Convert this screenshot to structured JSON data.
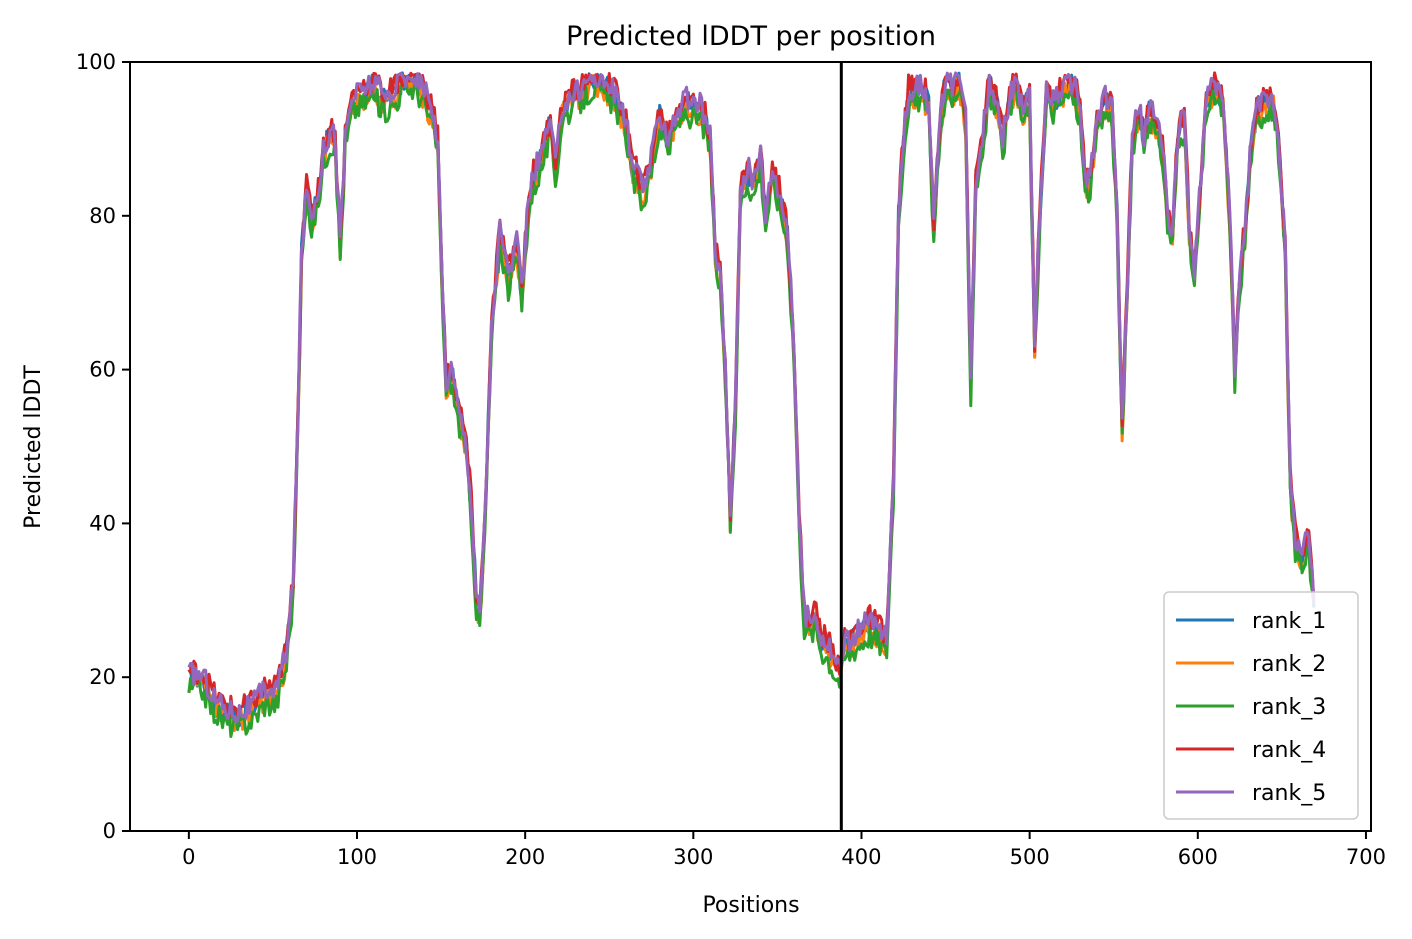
{
  "chart_data": {
    "type": "line",
    "title": "Predicted lDDT per position",
    "xlabel": "Positions",
    "ylabel": "Predicted lDDT",
    "xlim": [
      -35,
      703
    ],
    "ylim": [
      0,
      100
    ],
    "xticks": [
      0,
      100,
      200,
      300,
      400,
      500,
      600,
      700
    ],
    "yticks": [
      0,
      20,
      40,
      60,
      80,
      100
    ],
    "grid": false,
    "legend_position": "lower-right",
    "vline": {
      "x": 388,
      "color": "#000000"
    },
    "series": [
      {
        "name": "rank_1",
        "color": "#1f77b4",
        "offset": 0.0
      },
      {
        "name": "rank_2",
        "color": "#ff7f0e",
        "offset": -0.8
      },
      {
        "name": "rank_3",
        "color": "#2ca02c",
        "offset": -1.5
      },
      {
        "name": "rank_4",
        "color": "#d62728",
        "offset": 0.8
      },
      {
        "name": "rank_5",
        "color": "#9467bd",
        "offset": 0.4
      }
    ],
    "profile": [
      [
        0,
        20
      ],
      [
        8,
        20
      ],
      [
        15,
        17
      ],
      [
        22,
        15.5
      ],
      [
        30,
        15
      ],
      [
        38,
        16
      ],
      [
        45,
        18
      ],
      [
        52,
        18
      ],
      [
        58,
        23
      ],
      [
        62,
        32
      ],
      [
        65,
        55
      ],
      [
        67,
        75
      ],
      [
        70,
        83
      ],
      [
        73,
        80
      ],
      [
        76,
        82
      ],
      [
        80,
        88
      ],
      [
        84,
        91
      ],
      [
        87,
        90
      ],
      [
        90,
        76
      ],
      [
        93,
        90
      ],
      [
        97,
        95
      ],
      [
        103,
        96
      ],
      [
        110,
        97
      ],
      [
        116,
        95
      ],
      [
        122,
        96
      ],
      [
        128,
        98
      ],
      [
        135,
        98
      ],
      [
        140,
        96
      ],
      [
        145,
        93
      ],
      [
        148,
        90
      ],
      [
        150,
        75
      ],
      [
        153,
        58
      ],
      [
        156,
        60
      ],
      [
        160,
        55
      ],
      [
        165,
        50
      ],
      [
        168,
        42
      ],
      [
        171,
        30
      ],
      [
        173,
        28
      ],
      [
        176,
        40
      ],
      [
        180,
        65
      ],
      [
        185,
        78
      ],
      [
        190,
        72
      ],
      [
        195,
        76
      ],
      [
        198,
        70
      ],
      [
        202,
        82
      ],
      [
        205,
        85
      ],
      [
        210,
        88
      ],
      [
        215,
        92
      ],
      [
        218,
        86
      ],
      [
        222,
        94
      ],
      [
        226,
        95
      ],
      [
        232,
        96
      ],
      [
        240,
        98
      ],
      [
        248,
        97
      ],
      [
        255,
        95
      ],
      [
        260,
        92
      ],
      [
        264,
        86
      ],
      [
        267,
        85
      ],
      [
        270,
        83
      ],
      [
        275,
        87
      ],
      [
        280,
        93
      ],
      [
        285,
        90
      ],
      [
        290,
        93
      ],
      [
        295,
        95
      ],
      [
        300,
        94
      ],
      [
        305,
        94
      ],
      [
        310,
        90
      ],
      [
        313,
        75
      ],
      [
        316,
        72
      ],
      [
        319,
        60
      ],
      [
        322,
        41
      ],
      [
        325,
        55
      ],
      [
        328,
        83
      ],
      [
        332,
        86
      ],
      [
        336,
        84
      ],
      [
        340,
        88
      ],
      [
        343,
        80
      ],
      [
        347,
        86
      ],
      [
        352,
        82
      ],
      [
        356,
        78
      ],
      [
        360,
        62
      ],
      [
        363,
        40
      ],
      [
        366,
        28
      ],
      [
        370,
        27
      ],
      [
        373,
        28
      ],
      [
        376,
        25
      ],
      [
        380,
        24
      ],
      [
        384,
        22
      ],
      [
        387,
        21
      ],
      [
        390,
        24
      ],
      [
        395,
        25
      ],
      [
        400,
        26
      ],
      [
        405,
        27
      ],
      [
        410,
        26
      ],
      [
        415,
        25
      ],
      [
        419,
        45
      ],
      [
        422,
        80
      ],
      [
        425,
        90
      ],
      [
        428,
        96
      ],
      [
        432,
        96
      ],
      [
        436,
        97
      ],
      [
        440,
        94
      ],
      [
        443,
        78
      ],
      [
        446,
        90
      ],
      [
        450,
        98
      ],
      [
        454,
        96
      ],
      [
        458,
        98
      ],
      [
        462,
        92
      ],
      [
        465,
        58
      ],
      [
        468,
        85
      ],
      [
        472,
        90
      ],
      [
        476,
        97
      ],
      [
        480,
        95
      ],
      [
        484,
        90
      ],
      [
        488,
        95
      ],
      [
        492,
        97
      ],
      [
        496,
        94
      ],
      [
        500,
        95
      ],
      [
        503,
        63
      ],
      [
        506,
        80
      ],
      [
        510,
        96
      ],
      [
        514,
        95
      ],
      [
        518,
        96
      ],
      [
        522,
        97
      ],
      [
        526,
        97
      ],
      [
        530,
        94
      ],
      [
        533,
        84
      ],
      [
        536,
        85
      ],
      [
        540,
        92
      ],
      [
        545,
        95
      ],
      [
        549,
        94
      ],
      [
        552,
        80
      ],
      [
        555,
        52
      ],
      [
        558,
        70
      ],
      [
        561,
        90
      ],
      [
        565,
        94
      ],
      [
        568,
        90
      ],
      [
        571,
        94
      ],
      [
        575,
        92
      ],
      [
        579,
        89
      ],
      [
        582,
        80
      ],
      [
        585,
        78
      ],
      [
        588,
        90
      ],
      [
        592,
        93
      ],
      [
        595,
        78
      ],
      [
        598,
        72
      ],
      [
        601,
        82
      ],
      [
        605,
        95
      ],
      [
        610,
        97
      ],
      [
        615,
        95
      ],
      [
        619,
        80
      ],
      [
        622,
        60
      ],
      [
        625,
        72
      ],
      [
        628,
        78
      ],
      [
        632,
        90
      ],
      [
        636,
        94
      ],
      [
        640,
        95
      ],
      [
        645,
        95
      ],
      [
        648,
        90
      ],
      [
        652,
        75
      ],
      [
        655,
        45
      ],
      [
        658,
        38
      ],
      [
        662,
        36
      ],
      [
        666,
        38
      ],
      [
        669,
        30
      ]
    ],
    "legend_box": {
      "border_color": "#cccccc"
    }
  }
}
